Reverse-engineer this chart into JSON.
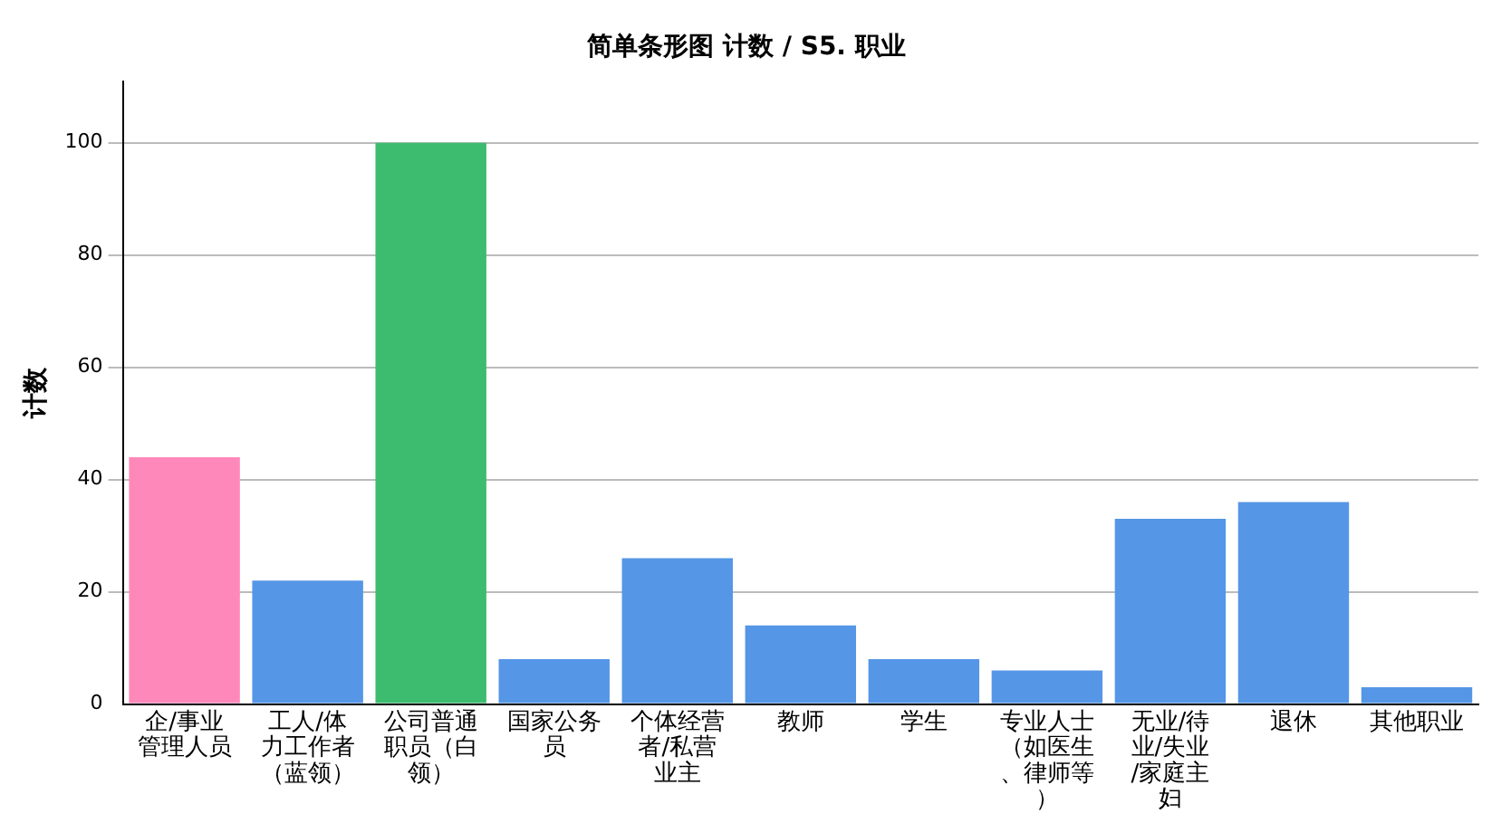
{
  "chart_data": {
    "type": "bar",
    "title": "简单条形图 计数 / S5. 职业",
    "ylabel": "计数",
    "categories": [
      "企/事业管理人员",
      "工人/体力工作者（蓝领）",
      "公司普通职员（白领）",
      "国家公务员",
      "个体经营者/私营业主",
      "教师",
      "学生",
      "专业人士（如医生、律师等）",
      "无业/待业/失业/家庭主妇",
      "退休",
      "其他职业"
    ],
    "values": [
      44,
      22,
      100,
      8,
      26,
      14,
      8,
      6,
      33,
      36,
      3
    ],
    "colors": [
      "#ff88bb",
      "#5596e6",
      "#3dbb6e",
      "#5596e6",
      "#5596e6",
      "#5596e6",
      "#5596e6",
      "#5596e6",
      "#5596e6",
      "#5596e6",
      "#5596e6"
    ],
    "ylim": [
      0,
      111
    ],
    "yticks": [
      0,
      20,
      40,
      60,
      80,
      100
    ],
    "grid": "y"
  }
}
